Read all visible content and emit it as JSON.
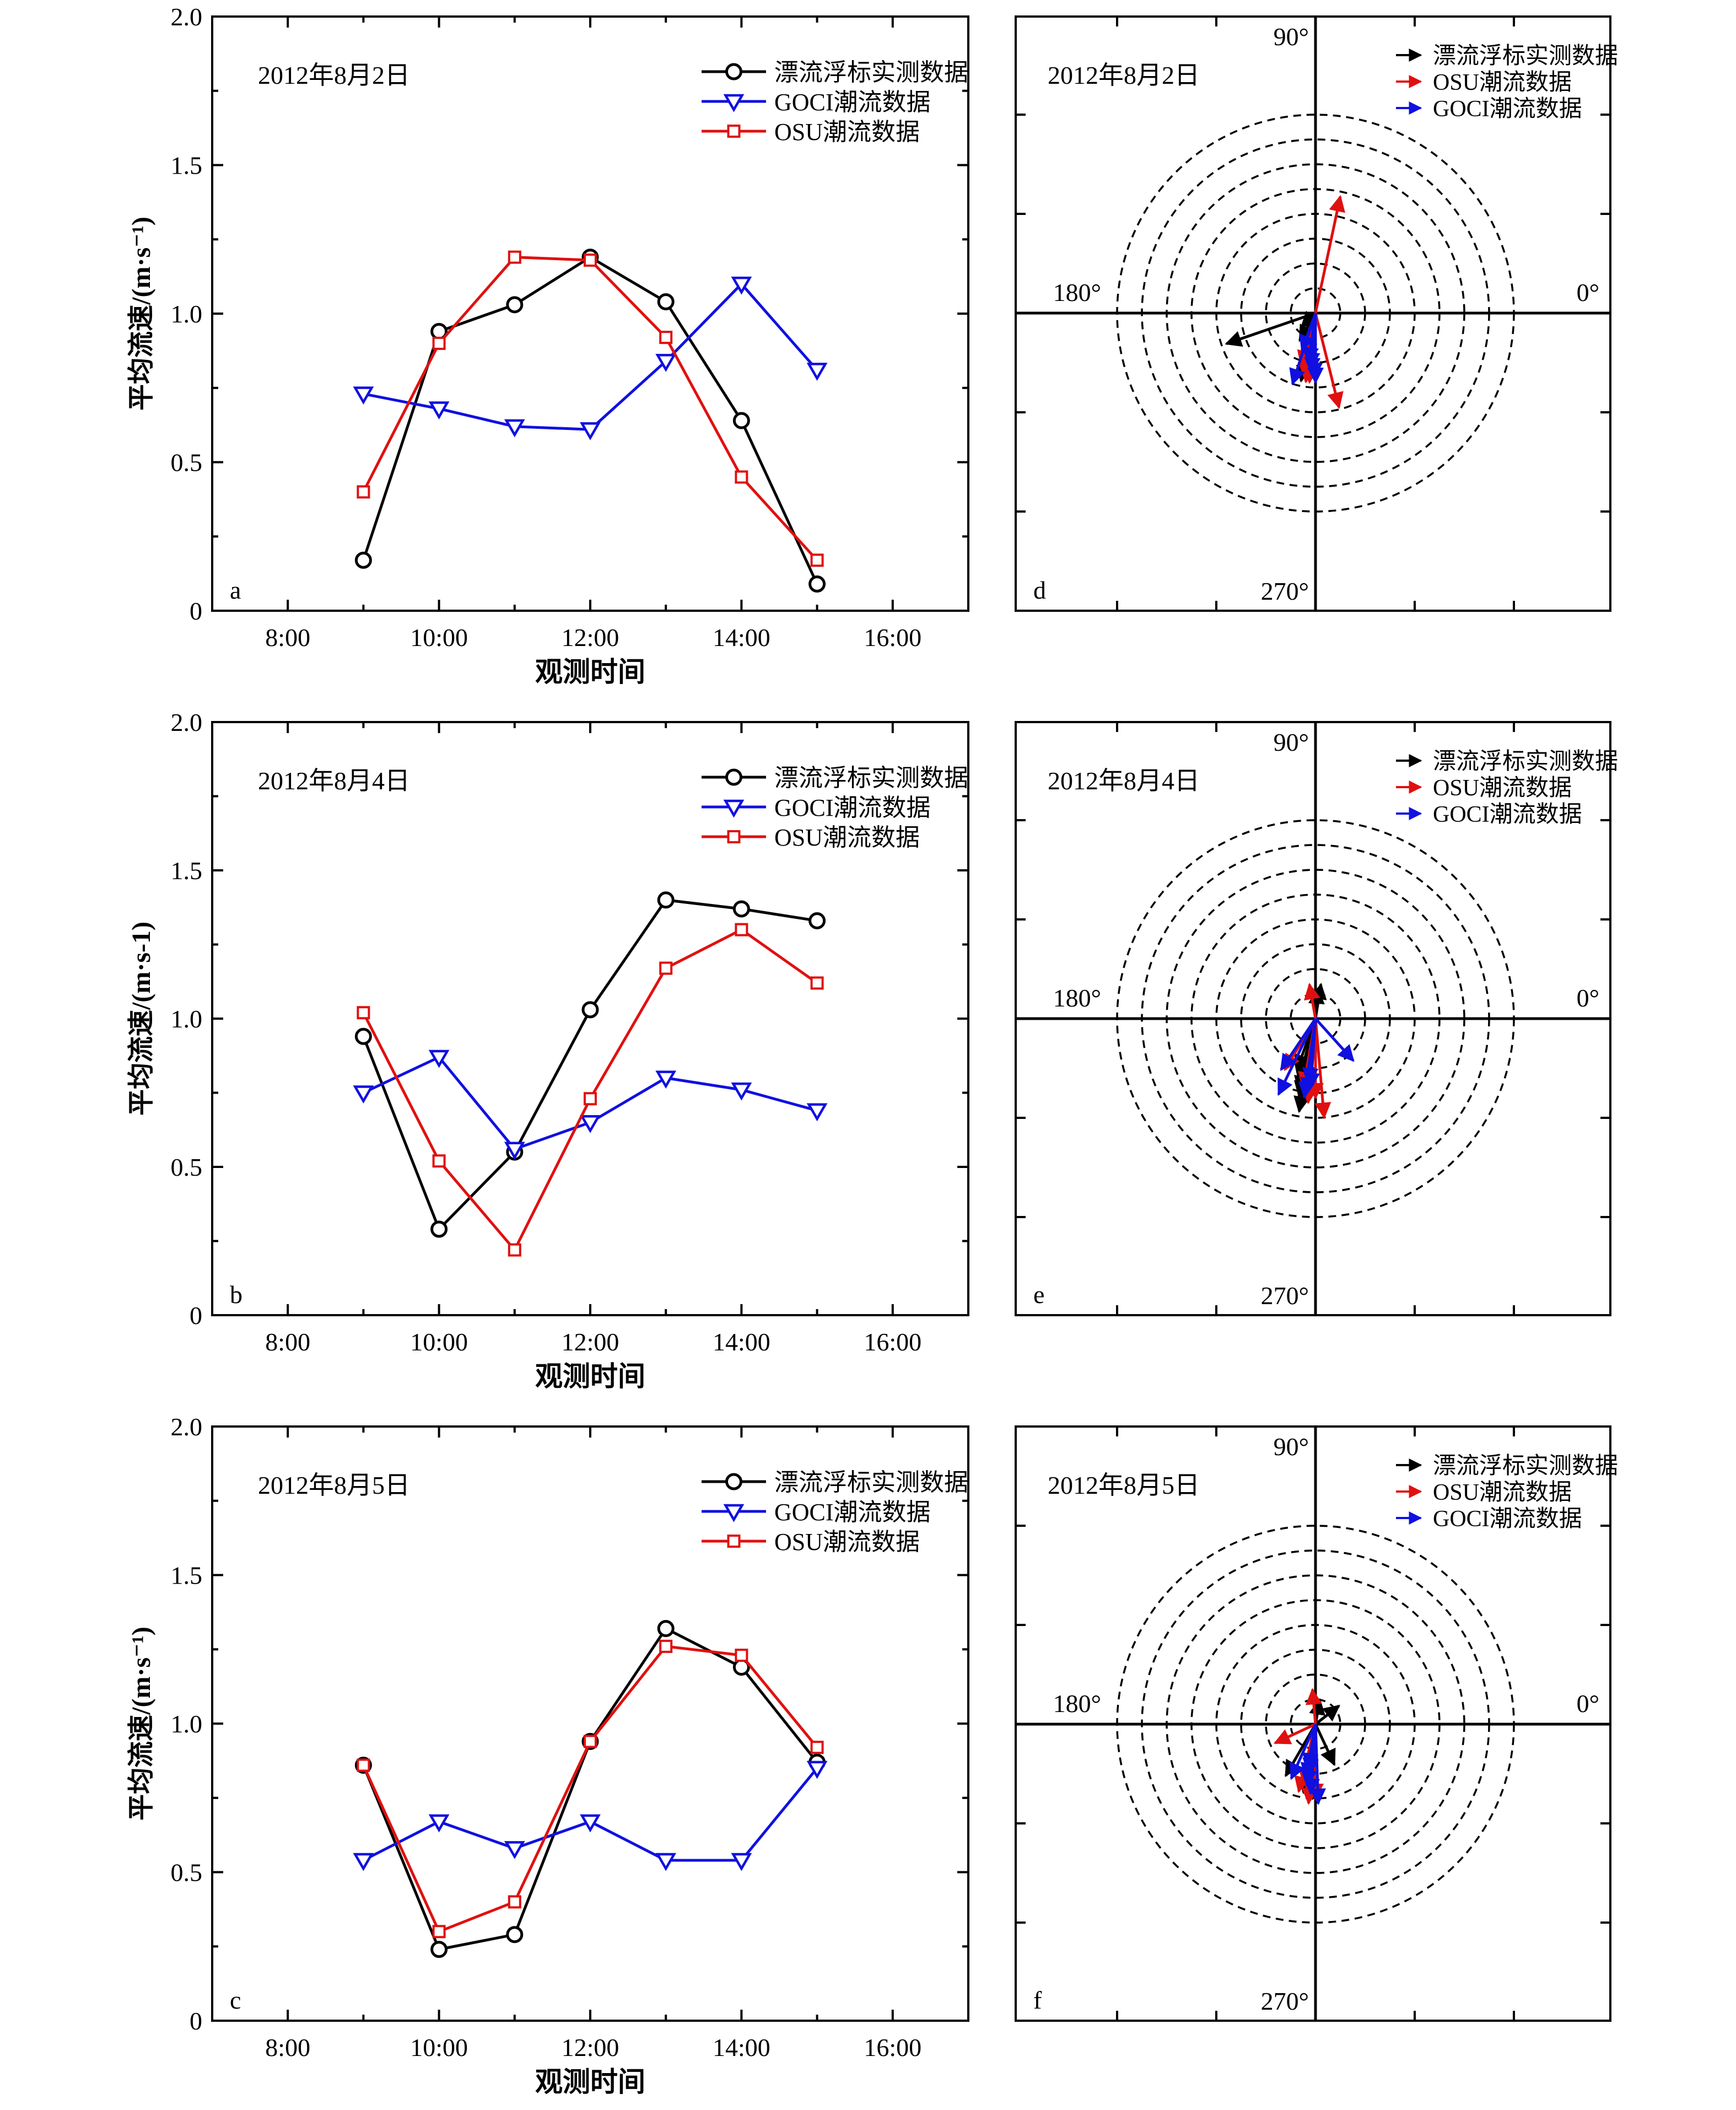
{
  "legend_colors": {
    "drifter": "#000000",
    "goci": "#1010e0",
    "osu": "#e01010"
  },
  "chart_data": [
    {
      "panel": "a",
      "type": "line",
      "date_label": "2012年8月2日",
      "xlabel": "观测时间",
      "ylabel": "平均流速/(m·s⁻¹)",
      "xticks": [
        "8:00",
        "10:00",
        "12:00",
        "14:00",
        "16:00"
      ],
      "yticks": [
        "0",
        "0.5",
        "1.0",
        "1.5",
        "2.0"
      ],
      "ylim": [
        0,
        2.0
      ],
      "xlim": [
        7.0,
        17.0
      ],
      "grid": false,
      "legend": "top-right",
      "x": [
        9,
        10,
        11,
        12,
        13,
        14,
        15
      ],
      "series": [
        {
          "name": "漂流浮标实测数据",
          "marker": "circle",
          "color": "#000000",
          "values": [
            0.17,
            0.94,
            1.03,
            1.19,
            1.04,
            0.64,
            0.09
          ]
        },
        {
          "name": "GOCI潮流数据",
          "marker": "triangle-down",
          "color": "#1010e0",
          "values": [
            0.73,
            0.68,
            0.62,
            0.61,
            0.84,
            1.1,
            0.81
          ]
        },
        {
          "name": "OSU潮流数据",
          "marker": "square",
          "color": "#e01010",
          "values": [
            0.4,
            0.9,
            1.19,
            1.18,
            0.92,
            0.45,
            0.17
          ]
        }
      ]
    },
    {
      "panel": "b",
      "type": "line",
      "date_label": "2012年8月4日",
      "xlabel": "观测时间",
      "ylabel": "平均流速/(m·s-1)",
      "xticks": [
        "8:00",
        "10:00",
        "12:00",
        "14:00",
        "16:00"
      ],
      "yticks": [
        "0",
        "0.5",
        "1.0",
        "1.5",
        "2.0"
      ],
      "ylim": [
        0,
        2.0
      ],
      "xlim": [
        7.0,
        17.0
      ],
      "grid": false,
      "legend": "top-right",
      "x": [
        9,
        10,
        11,
        12,
        13,
        14,
        15
      ],
      "series": [
        {
          "name": "漂流浮标实测数据",
          "marker": "circle",
          "color": "#000000",
          "values": [
            0.94,
            0.29,
            0.55,
            1.03,
            1.4,
            1.37,
            1.33
          ]
        },
        {
          "name": "GOCI潮流数据",
          "marker": "triangle-down",
          "color": "#1010e0",
          "values": [
            0.75,
            0.87,
            0.56,
            0.65,
            0.8,
            0.76,
            0.69
          ]
        },
        {
          "name": "OSU潮流数据",
          "marker": "square",
          "color": "#e01010",
          "values": [
            1.02,
            0.52,
            0.22,
            0.73,
            1.17,
            1.3,
            1.12
          ]
        }
      ]
    },
    {
      "panel": "c",
      "type": "line",
      "date_label": "2012年8月5日",
      "xlabel": "观测时间",
      "ylabel": "平均流速/(m·s⁻¹)",
      "xticks": [
        "8:00",
        "10:00",
        "12:00",
        "14:00",
        "16:00"
      ],
      "yticks": [
        "0",
        "0.5",
        "1.0",
        "1.5",
        "2.0"
      ],
      "ylim": [
        0,
        2.0
      ],
      "xlim": [
        7.0,
        17.0
      ],
      "grid": false,
      "legend": "top-right",
      "x": [
        9,
        10,
        11,
        12,
        13,
        14,
        15
      ],
      "series": [
        {
          "name": "漂流浮标实测数据",
          "marker": "circle",
          "color": "#000000",
          "values": [
            0.86,
            0.24,
            0.29,
            0.94,
            1.32,
            1.19,
            0.87
          ]
        },
        {
          "name": "GOCI潮流数据",
          "marker": "triangle-down",
          "color": "#1010e0",
          "values": [
            0.54,
            0.67,
            0.58,
            0.67,
            0.54,
            0.54,
            0.85
          ]
        },
        {
          "name": "OSU潮流数据",
          "marker": "square",
          "color": "#e01010",
          "values": [
            0.86,
            0.3,
            0.4,
            0.94,
            1.26,
            1.23,
            0.92
          ]
        }
      ]
    },
    {
      "panel": "d",
      "type": "polar-vectors",
      "date_label": "2012年8月2日",
      "angle_labels": [
        "90°",
        "180°",
        "0°",
        "270°"
      ],
      "ring_count": 8,
      "rmax": 2.0,
      "ring_step": 0.25,
      "series": [
        {
          "name": "漂流浮标实测数据",
          "color": "#000000",
          "vectors": [
            [
              0.95,
              199
            ],
            [
              0.2,
              225
            ],
            [
              0.32,
              240
            ],
            [
              0.55,
              255
            ],
            [
              0.7,
              258
            ],
            [
              0.65,
              262
            ],
            [
              0.6,
              262
            ]
          ]
        },
        {
          "name": "OSU潮流数据",
          "color": "#e01010",
          "vectors": [
            [
              1.2,
              78
            ],
            [
              0.98,
              284
            ],
            [
              0.7,
              262
            ],
            [
              0.45,
              258
            ],
            [
              0.55,
              255
            ],
            [
              0.65,
              260
            ],
            [
              0.7,
              265
            ]
          ]
        },
        {
          "name": "GOCI潮流数据",
          "color": "#1010e0",
          "vectors": [
            [
              0.75,
              252
            ],
            [
              0.6,
              266
            ],
            [
              0.55,
              265
            ],
            [
              0.5,
              262
            ],
            [
              0.7,
              270
            ],
            [
              0.65,
              269
            ],
            [
              0.4,
              250
            ]
          ]
        }
      ]
    },
    {
      "panel": "e",
      "type": "polar-vectors",
      "date_label": "2012年8月4日",
      "angle_labels": [
        "90°",
        "180°",
        "0°",
        "270°"
      ],
      "ring_count": 8,
      "rmax": 2.0,
      "ring_step": 0.25,
      "series": [
        {
          "name": "漂流浮标实测数据",
          "color": "#000000",
          "vectors": [
            [
              0.35,
              81
            ],
            [
              0.3,
              86
            ],
            [
              0.95,
              260
            ],
            [
              0.8,
              258
            ],
            [
              0.55,
              250
            ],
            [
              0.65,
              255
            ],
            [
              0.75,
              257
            ]
          ]
        },
        {
          "name": "OSU潮流数据",
          "color": "#e01010",
          "vectors": [
            [
              0.35,
              100
            ],
            [
              1.0,
              275
            ],
            [
              0.85,
              265
            ],
            [
              0.6,
              239
            ],
            [
              0.75,
              262
            ],
            [
              0.7,
              260
            ],
            [
              0.8,
              270
            ]
          ]
        },
        {
          "name": "GOCI潮流数据",
          "color": "#1010e0",
          "vectors": [
            [
              0.85,
              244
            ],
            [
              0.62,
              236
            ],
            [
              0.57,
              312
            ],
            [
              0.75,
              263
            ],
            [
              0.7,
              266
            ],
            [
              0.65,
              264
            ],
            [
              0.8,
              262
            ]
          ]
        }
      ]
    },
    {
      "panel": "f",
      "type": "polar-vectors",
      "date_label": "2012年8月5日",
      "angle_labels": [
        "90°",
        "180°",
        "0°",
        "270°"
      ],
      "ring_count": 8,
      "rmax": 2.0,
      "ring_step": 0.25,
      "series": [
        {
          "name": "漂流浮标实测数据",
          "color": "#000000",
          "vectors": [
            [
              0.25,
              80
            ],
            [
              0.3,
              38
            ],
            [
              0.45,
              295
            ],
            [
              0.6,
              240
            ],
            [
              0.7,
              260
            ],
            [
              0.6,
              262
            ],
            [
              0.75,
              268
            ]
          ]
        },
        {
          "name": "OSU潮流数据",
          "color": "#e01010",
          "vectors": [
            [
              0.35,
              95
            ],
            [
              0.45,
              205
            ],
            [
              0.8,
              265
            ],
            [
              0.7,
              256
            ],
            [
              0.75,
              270
            ],
            [
              0.65,
              262
            ],
            [
              0.6,
              258
            ]
          ]
        },
        {
          "name": "GOCI潮流数据",
          "color": "#1010e0",
          "vectors": [
            [
              0.6,
              246
            ],
            [
              0.55,
              260
            ],
            [
              0.8,
              272
            ],
            [
              0.7,
              266
            ],
            [
              0.62,
              262
            ],
            [
              0.5,
              262
            ],
            [
              0.45,
              260
            ]
          ]
        }
      ]
    }
  ]
}
